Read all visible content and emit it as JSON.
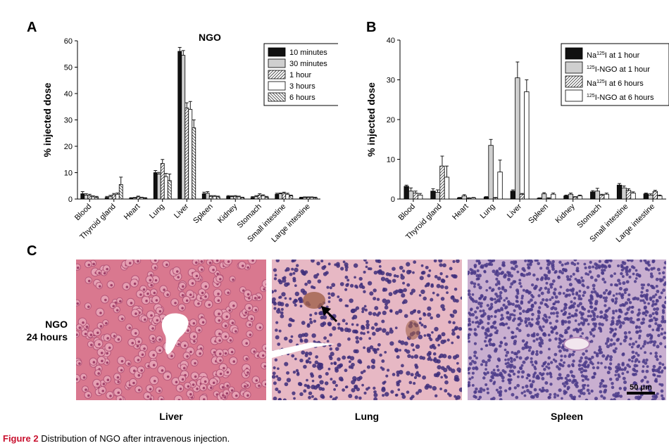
{
  "panels": {
    "a": "A",
    "b": "B",
    "c": "C"
  },
  "chart_data": [
    {
      "type": "bar",
      "title": "NGO",
      "ylabel": "% injected dose",
      "ylim": [
        0,
        60
      ],
      "yticks": [
        0,
        10,
        20,
        30,
        40,
        50,
        60
      ],
      "legend_position": "top-right",
      "categories": [
        "Blood",
        "Thyroid gland",
        "Heart",
        "Lung",
        "Liver",
        "Spleen",
        "Kidney",
        "Stomach",
        "Small intestine",
        "Large intestine"
      ],
      "series": [
        {
          "name": "10 minutes",
          "pattern": "black",
          "values": [
            2.0,
            0.6,
            0.3,
            10.0,
            56.0,
            2.0,
            1.0,
            0.6,
            1.8,
            0.5
          ],
          "errors": [
            0.8,
            0.4,
            0.2,
            0.8,
            1.5,
            0.6,
            0.3,
            0.3,
            0.4,
            0.2
          ]
        },
        {
          "name": "30 minutes",
          "pattern": "gray",
          "values": [
            1.5,
            1.0,
            0.4,
            9.5,
            54.5,
            2.2,
            0.9,
            0.9,
            2.0,
            0.6
          ],
          "errors": [
            0.5,
            0.4,
            0.2,
            0.6,
            1.8,
            0.6,
            0.3,
            0.4,
            0.3,
            0.2
          ]
        },
        {
          "name": "1 hour",
          "pattern": "diag",
          "values": [
            1.3,
            1.6,
            0.8,
            13.5,
            34.5,
            1.0,
            1.0,
            1.5,
            2.2,
            0.6
          ],
          "errors": [
            0.5,
            0.5,
            0.3,
            1.5,
            2.0,
            0.3,
            0.3,
            0.5,
            0.4,
            0.2
          ]
        },
        {
          "name": "3 hours",
          "pattern": "white",
          "values": [
            0.8,
            1.8,
            0.5,
            8.5,
            34.0,
            1.0,
            0.8,
            1.2,
            1.8,
            0.6
          ],
          "errors": [
            0.4,
            0.5,
            0.2,
            1.2,
            3.0,
            0.3,
            0.3,
            0.4,
            0.4,
            0.2
          ]
        },
        {
          "name": "6 hours",
          "pattern": "backdiag",
          "values": [
            0.7,
            5.5,
            0.3,
            7.0,
            27.0,
            0.8,
            0.5,
            0.7,
            1.2,
            0.5
          ],
          "errors": [
            0.3,
            2.8,
            0.2,
            2.5,
            3.0,
            0.3,
            0.2,
            0.3,
            0.3,
            0.2
          ]
        }
      ]
    },
    {
      "type": "bar",
      "ylabel": "% injected dose",
      "ylim": [
        0,
        40
      ],
      "yticks": [
        0,
        10,
        20,
        30,
        40
      ],
      "legend_position": "top-right",
      "categories": [
        "Blood",
        "Thyroid gland",
        "Heart",
        "Lung",
        "Liver",
        "Spleen",
        "Kidney",
        "Stomach",
        "Small intestine",
        "Large intestine"
      ],
      "series": [
        {
          "name": "Na125I at 1 hour",
          "label_pre": "Na",
          "label_sup": "125",
          "label_post": "I at 1 hour",
          "pattern": "black",
          "values": [
            3.2,
            2.0,
            0.3,
            0.5,
            2.0,
            0.2,
            0.8,
            1.8,
            3.5,
            1.3
          ],
          "errors": [
            0.3,
            0.6,
            0.1,
            0.1,
            0.3,
            0.1,
            0.2,
            0.3,
            0.4,
            0.2
          ]
        },
        {
          "name": "125I-NGO at 1 hour",
          "label_pre": "",
          "label_sup": "125",
          "label_post": "I-NGO at 1 hour",
          "pattern": "gray",
          "values": [
            2.0,
            1.7,
            0.8,
            13.5,
            30.5,
            1.3,
            1.2,
            2.0,
            2.8,
            1.0
          ],
          "errors": [
            0.8,
            0.6,
            0.3,
            1.5,
            4.0,
            0.3,
            0.3,
            0.7,
            0.5,
            0.3
          ]
        },
        {
          "name": "Na125I at 6 hours",
          "label_pre": "Na",
          "label_sup": "125",
          "label_post": "I at 6 hours",
          "pattern": "diag",
          "values": [
            1.5,
            8.3,
            0.2,
            0.3,
            1.2,
            0.2,
            0.5,
            1.0,
            2.2,
            1.9
          ],
          "errors": [
            0.5,
            2.5,
            0.1,
            0.1,
            0.2,
            0.1,
            0.1,
            0.2,
            0.4,
            0.3
          ]
        },
        {
          "name": "125I-NGO at 6 hours",
          "label_pre": "",
          "label_sup": "125",
          "label_post": "I-NGO at 6 hours",
          "pattern": "white",
          "values": [
            1.0,
            5.5,
            0.3,
            6.8,
            27.0,
            1.2,
            0.8,
            1.2,
            1.5,
            0.8
          ],
          "errors": [
            0.4,
            2.8,
            0.1,
            3.0,
            3.0,
            0.3,
            0.2,
            0.3,
            0.3,
            0.2
          ]
        }
      ]
    }
  ],
  "histology": {
    "row_label_line1": "NGO",
    "row_label_line2": "24 hours",
    "images": [
      {
        "caption": "Liver",
        "base_color": "#d9788f",
        "cell_color": "#a0416a"
      },
      {
        "caption": "Lung",
        "base_color": "#e7b8c4",
        "cell_color": "#3d2d7a"
      },
      {
        "caption": "Spleen",
        "base_color": "#c9afd0",
        "cell_color": "#4a3a88"
      }
    ],
    "scale_bar_label": "50 μm"
  },
  "figure_caption": {
    "label": "Figure 2",
    "text": " Distribution of NGO after intravenous injection."
  }
}
